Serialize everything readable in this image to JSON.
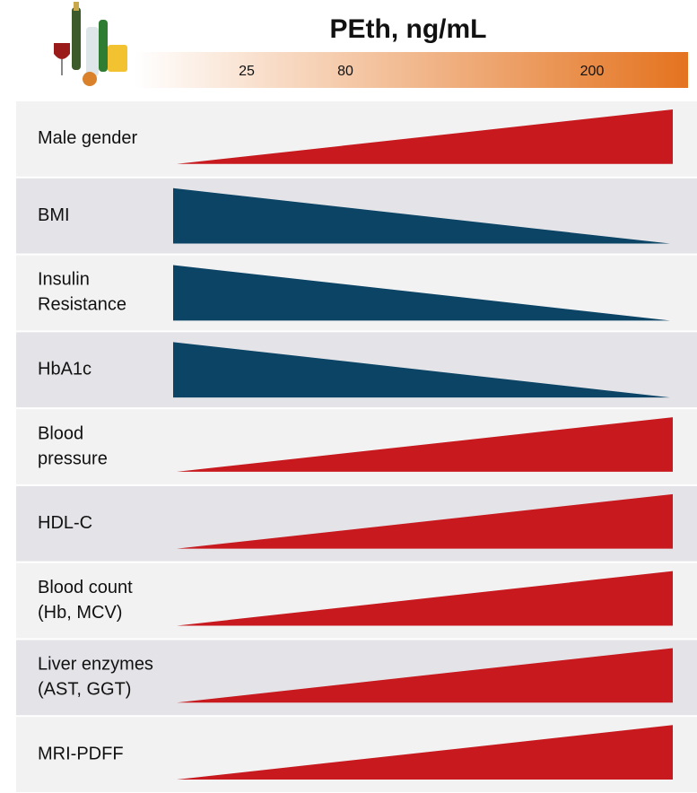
{
  "header": {
    "title": "PEth, ng/mL",
    "scale_labels": [
      "25",
      "80",
      "200"
    ]
  },
  "rows": [
    {
      "label_lines": [
        "Male gender"
      ],
      "trend": "increase",
      "color": "#c8191e"
    },
    {
      "label_lines": [
        "BMI"
      ],
      "trend": "decrease",
      "color": "#0c4466"
    },
    {
      "label_lines": [
        "Insulin",
        "Resistance"
      ],
      "trend": "decrease",
      "color": "#0c4466"
    },
    {
      "label_lines": [
        "HbA1c"
      ],
      "trend": "decrease",
      "color": "#0c4466"
    },
    {
      "label_lines": [
        "Blood",
        "pressure"
      ],
      "trend": "increase",
      "color": "#c8191e"
    },
    {
      "label_lines": [
        "HDL-C"
      ],
      "trend": "increase",
      "color": "#c8191e"
    },
    {
      "label_lines": [
        "Blood count",
        "(Hb, MCV)"
      ],
      "trend": "increase",
      "color": "#c8191e"
    },
    {
      "label_lines": [
        "Liver enzymes",
        "(AST, GGT)"
      ],
      "trend": "increase",
      "color": "#c8191e"
    },
    {
      "label_lines": [
        "MRI-PDFF"
      ],
      "trend": "increase",
      "color": "#c8191e"
    }
  ]
}
